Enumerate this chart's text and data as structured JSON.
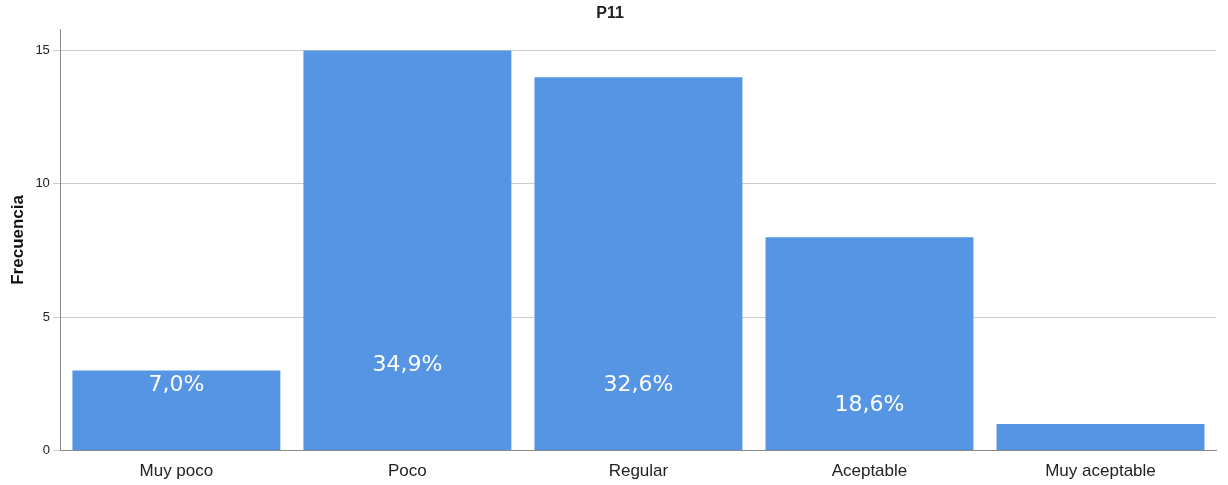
{
  "chart_data": {
    "type": "bar",
    "title": "P11",
    "ylabel": "Frecuencia",
    "categories": [
      "Muy poco",
      "Poco",
      "Regular",
      "Aceptable",
      "Muy aceptable"
    ],
    "values": [
      3,
      15,
      14,
      8,
      1
    ],
    "color": "#5595e3",
    "annotations": [
      "7,0%",
      "34,9%",
      "32,6%",
      "18,6%"
    ],
    "ylim": [
      0,
      15.8
    ],
    "yticks": [
      0,
      5,
      10,
      15
    ],
    "grid": "y",
    "legend": false
  }
}
